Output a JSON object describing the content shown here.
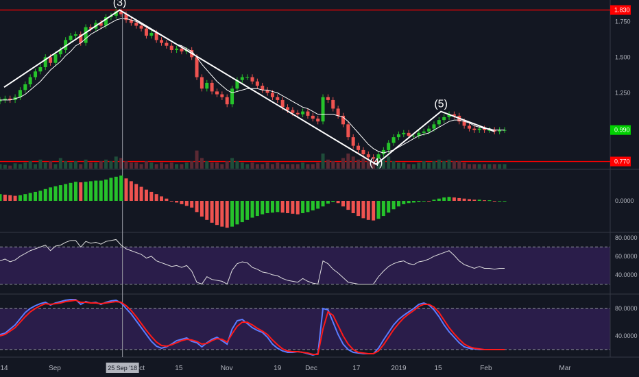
{
  "chart_data": [
    {
      "panel": "price",
      "type": "candlestick",
      "y_ticks": [
        "1.750",
        "1.500",
        "1.250"
      ],
      "ylim": [
        0.72,
        1.9
      ],
      "levels": [
        {
          "label": "1.830",
          "value": 1.83,
          "color": "#ff0000"
        },
        {
          "label": "0.770",
          "value": 0.77,
          "color": "#ff0000"
        }
      ],
      "last_price": {
        "label": "0.990",
        "value": 0.99,
        "color": "#00d000"
      },
      "wave_labels": [
        {
          "text": "(3)",
          "date": "2018-09-24",
          "price": 1.84
        },
        {
          "text": "(4)",
          "date": "2018-12-24",
          "price": 0.72
        },
        {
          "text": "(5)",
          "date": "2019-01-16",
          "price": 1.13
        }
      ],
      "wave_line": [
        {
          "date": "2018-08-14",
          "price": 1.29
        },
        {
          "date": "2018-09-24",
          "price": 1.83
        },
        {
          "date": "2018-12-24",
          "price": 0.75
        },
        {
          "date": "2019-01-16",
          "price": 1.12
        },
        {
          "date": "2019-02-04",
          "price": 0.98
        }
      ],
      "close": [
        1.2,
        1.21,
        1.2,
        1.22,
        1.27,
        1.31,
        1.36,
        1.4,
        1.43,
        1.5,
        1.46,
        1.52,
        1.55,
        1.62,
        1.65,
        1.66,
        1.6,
        1.71,
        1.7,
        1.74,
        1.72,
        1.78,
        1.79,
        1.82,
        1.8,
        1.76,
        1.74,
        1.72,
        1.7,
        1.65,
        1.67,
        1.62,
        1.6,
        1.58,
        1.55,
        1.56,
        1.54,
        1.55,
        1.5,
        1.36,
        1.28,
        1.32,
        1.26,
        1.24,
        1.22,
        1.17,
        1.28,
        1.34,
        1.36,
        1.36,
        1.33,
        1.3,
        1.27,
        1.25,
        1.22,
        1.2,
        1.15,
        1.13,
        1.11,
        1.1,
        1.12,
        1.09,
        1.07,
        1.05,
        1.22,
        1.2,
        1.14,
        1.09,
        1.03,
        0.94,
        0.88,
        0.85,
        0.82,
        0.8,
        0.79,
        0.82,
        0.85,
        0.9,
        0.94,
        0.96,
        0.97,
        0.95,
        0.95,
        0.97,
        0.98,
        1.0,
        1.03,
        1.06,
        1.08,
        1.1,
        1.09,
        1.05,
        1.02,
        1.0,
        0.99,
        1.0,
        0.99,
        0.99,
        0.98,
        0.99,
        0.99
      ],
      "ma": [
        1.2,
        1.2,
        1.2,
        1.21,
        1.22,
        1.24,
        1.27,
        1.3,
        1.33,
        1.37,
        1.41,
        1.44,
        1.47,
        1.51,
        1.54,
        1.58,
        1.6,
        1.63,
        1.66,
        1.68,
        1.7,
        1.72,
        1.74,
        1.76,
        1.77,
        1.77,
        1.76,
        1.75,
        1.73,
        1.71,
        1.69,
        1.67,
        1.65,
        1.63,
        1.61,
        1.59,
        1.58,
        1.56,
        1.54,
        1.5,
        1.45,
        1.41,
        1.37,
        1.33,
        1.3,
        1.27,
        1.25,
        1.26,
        1.27,
        1.28,
        1.28,
        1.28,
        1.27,
        1.27,
        1.26,
        1.25,
        1.23,
        1.21,
        1.19,
        1.17,
        1.15,
        1.14,
        1.12,
        1.1,
        1.1,
        1.1,
        1.1,
        1.09,
        1.08,
        1.05,
        1.01,
        0.97,
        0.93,
        0.89,
        0.86,
        0.84,
        0.83,
        0.84,
        0.85,
        0.87,
        0.89,
        0.91,
        0.93,
        0.95,
        0.96,
        0.97,
        0.99,
        1.01,
        1.03,
        1.05,
        1.06,
        1.06,
        1.05,
        1.04,
        1.02,
        1.01,
        1.0,
        1.0,
        0.99,
        0.99,
        0.99
      ],
      "volume": [
        0.3,
        0.25,
        0.2,
        0.35,
        0.3,
        0.4,
        0.5,
        0.3,
        0.6,
        0.4,
        0.5,
        0.3,
        0.7,
        0.5,
        0.4,
        0.5,
        0.3,
        0.6,
        0.4,
        0.4,
        0.5,
        0.6,
        0.5,
        0.8,
        0.7,
        0.5,
        0.4,
        0.4,
        0.3,
        0.5,
        0.4,
        0.3,
        0.4,
        0.3,
        0.4,
        0.3,
        0.3,
        0.4,
        0.5,
        1.2,
        0.7,
        0.5,
        0.4,
        0.4,
        0.3,
        0.5,
        0.7,
        0.5,
        0.4,
        0.3,
        0.4,
        0.3,
        0.3,
        0.4,
        0.3,
        0.4,
        0.3,
        0.3,
        0.3,
        0.3,
        0.4,
        0.3,
        0.3,
        0.4,
        1.0,
        0.6,
        0.5,
        0.4,
        0.7,
        1.0,
        0.8,
        0.6,
        0.7,
        0.5,
        0.5,
        0.5,
        0.6,
        0.8,
        0.5,
        0.4,
        0.4,
        0.3,
        0.3,
        0.4,
        0.5,
        0.4,
        0.5,
        0.6,
        0.5,
        0.6,
        0.5,
        0.5,
        0.4,
        0.3,
        0.3,
        0.3,
        0.3,
        0.3,
        0.3,
        0.3,
        0.3
      ]
    },
    {
      "panel": "macd-histogram",
      "type": "bar",
      "y_ticks": [
        "0.0000"
      ],
      "ylim": [
        -0.055,
        0.055
      ],
      "values": [
        0.012,
        0.011,
        0.01,
        0.009,
        0.01,
        0.012,
        0.014,
        0.016,
        0.018,
        0.021,
        0.024,
        0.026,
        0.028,
        0.03,
        0.032,
        0.034,
        0.033,
        0.034,
        0.035,
        0.036,
        0.036,
        0.038,
        0.041,
        0.043,
        0.045,
        0.04,
        0.035,
        0.03,
        0.025,
        0.02,
        0.016,
        0.012,
        0.008,
        0.004,
        0.0,
        -0.003,
        -0.006,
        -0.009,
        -0.012,
        -0.02,
        -0.028,
        -0.034,
        -0.039,
        -0.043,
        -0.046,
        -0.048,
        -0.046,
        -0.042,
        -0.038,
        -0.034,
        -0.03,
        -0.027,
        -0.024,
        -0.022,
        -0.021,
        -0.02,
        -0.021,
        -0.022,
        -0.023,
        -0.024,
        -0.022,
        -0.02,
        -0.017,
        -0.014,
        -0.01,
        -0.005,
        -0.002,
        -0.004,
        -0.01,
        -0.016,
        -0.022,
        -0.027,
        -0.031,
        -0.034,
        -0.035,
        -0.032,
        -0.027,
        -0.021,
        -0.015,
        -0.01,
        -0.006,
        -0.004,
        -0.003,
        -0.002,
        -0.001,
        0.0,
        0.002,
        0.004,
        0.006,
        0.007,
        0.006,
        0.005,
        0.004,
        0.003,
        0.002,
        0.002,
        0.001,
        0.001,
        0.0,
        0.0,
        0.0
      ]
    },
    {
      "panel": "rsi",
      "type": "line",
      "y_ticks": [
        "80.0000",
        "60.0000",
        "40.0000"
      ],
      "ylim": [
        20,
        85
      ],
      "band": [
        30,
        70
      ],
      "values": [
        55,
        57,
        54,
        56,
        60,
        63,
        66,
        68,
        70,
        72,
        66,
        71,
        72,
        75,
        77,
        77,
        70,
        76,
        74,
        75,
        73,
        76,
        77,
        78,
        72,
        68,
        66,
        64,
        62,
        58,
        60,
        55,
        53,
        51,
        49,
        50,
        48,
        50,
        44,
        32,
        30,
        38,
        35,
        34,
        33,
        30,
        45,
        52,
        54,
        53,
        48,
        46,
        43,
        42,
        40,
        39,
        36,
        34,
        33,
        32,
        36,
        33,
        31,
        30,
        55,
        52,
        46,
        42,
        37,
        32,
        31,
        30,
        30,
        30,
        30,
        38,
        44,
        49,
        52,
        54,
        55,
        52,
        51,
        54,
        55,
        57,
        60,
        62,
        64,
        66,
        61,
        55,
        51,
        49,
        47,
        49,
        47,
        47,
        46,
        47,
        47
      ]
    },
    {
      "panel": "stochastic",
      "type": "line",
      "y_ticks": [
        "80.0000",
        "40.0000"
      ],
      "ylim": [
        10,
        100
      ],
      "band": [
        20,
        80
      ],
      "series": [
        {
          "color": "#5b7cff",
          "values": [
            42,
            44,
            50,
            56,
            65,
            74,
            80,
            84,
            87,
            89,
            85,
            88,
            90,
            92,
            93,
            93,
            86,
            90,
            88,
            89,
            86,
            89,
            91,
            92,
            88,
            80,
            72,
            62,
            52,
            42,
            32,
            25,
            22,
            24,
            28,
            33,
            35,
            37,
            32,
            30,
            24,
            30,
            35,
            38,
            33,
            28,
            50,
            62,
            64,
            58,
            52,
            48,
            45,
            38,
            28,
            22,
            18,
            16,
            16,
            17,
            16,
            14,
            12,
            14,
            80,
            78,
            60,
            42,
            28,
            20,
            16,
            15,
            14,
            14,
            14,
            22,
            34,
            45,
            56,
            64,
            70,
            75,
            80,
            86,
            88,
            85,
            78,
            68,
            56,
            46,
            38,
            30,
            24,
            22,
            21,
            20,
            20,
            20,
            20,
            20,
            20
          ]
        },
        {
          "color": "#ff1a1a",
          "values": [
            40,
            42,
            47,
            52,
            60,
            68,
            75,
            80,
            84,
            87,
            86,
            87,
            88,
            90,
            91,
            92,
            89,
            89,
            88,
            88,
            87,
            88,
            89,
            90,
            89,
            84,
            77,
            68,
            58,
            48,
            39,
            31,
            26,
            25,
            27,
            30,
            33,
            35,
            34,
            32,
            28,
            29,
            33,
            36,
            35,
            31,
            43,
            54,
            60,
            60,
            56,
            51,
            47,
            42,
            34,
            27,
            21,
            18,
            17,
            17,
            16,
            15,
            13,
            13,
            50,
            75,
            70,
            55,
            40,
            28,
            20,
            16,
            15,
            14,
            14,
            18,
            27,
            38,
            49,
            58,
            66,
            72,
            77,
            83,
            86,
            86,
            82,
            74,
            63,
            52,
            43,
            35,
            28,
            24,
            22,
            21,
            20,
            20,
            20,
            20,
            20
          ]
        }
      ]
    }
  ],
  "x_axis": {
    "ticks": [
      {
        "label": "14",
        "date": "2018-08-14"
      },
      {
        "label": "Sep",
        "date": "2018-09-01"
      },
      {
        "label": "Oct",
        "date": "2018-10-01"
      },
      {
        "label": "15",
        "date": "2018-10-15"
      },
      {
        "label": "Nov",
        "date": "2018-11-01"
      },
      {
        "label": "19",
        "date": "2018-11-19"
      },
      {
        "label": "Dec",
        "date": "2018-12-01"
      },
      {
        "label": "17",
        "date": "2018-12-17"
      },
      {
        "label": "2019",
        "date": "2019-01-01"
      },
      {
        "label": "15",
        "date": "2019-01-15"
      },
      {
        "label": "Feb",
        "date": "2019-02-01"
      },
      {
        "label": "Mar",
        "date": "2019-03-01"
      }
    ],
    "cursor": {
      "label": "25 Sep '18",
      "date": "2018-09-25"
    }
  },
  "colors": {
    "background": "#131722",
    "up": "#26c32b",
    "down": "#ef5350",
    "level": "#ff0000",
    "osc_band": "#2a1d4a",
    "wave": "#ffffff"
  }
}
